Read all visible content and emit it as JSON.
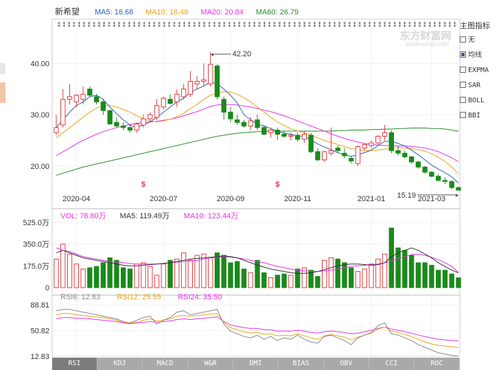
{
  "stock": {
    "name": "新希望"
  },
  "ma_legend": [
    {
      "label": "MA5: 16.68",
      "color": "#2a5db0"
    },
    {
      "label": "MA10: 18.48",
      "color": "#e8a317"
    },
    {
      "label": "MA20: 20.84",
      "color": "#e830e8"
    },
    {
      "label": "MA60: 26.79",
      "color": "#2a8a2a"
    }
  ],
  "price_axis": {
    "ticks": [
      "40.00",
      "30.00",
      "20.00"
    ],
    "range": [
      14.5,
      47.0
    ]
  },
  "date_ticks": [
    {
      "label": "2020-04",
      "idx": 3
    },
    {
      "label": "2020-07",
      "idx": 16
    },
    {
      "label": "2020-09",
      "idx": 26
    },
    {
      "label": "2020-11",
      "idx": 36
    },
    {
      "label": "2021-01",
      "idx": 47
    },
    {
      "label": "2021-03",
      "idx": 56
    }
  ],
  "annotations": {
    "high": "42.20",
    "low": "15.19"
  },
  "watermark": {
    "cn": "东方财富网",
    "en": "eastmoney.com"
  },
  "side_panel": {
    "title": "主图指标",
    "options": [
      {
        "label": "无",
        "checked": false
      },
      {
        "label": "均线",
        "checked": true
      },
      {
        "label": "EXPMA",
        "checked": false
      },
      {
        "label": "SAR",
        "checked": false
      },
      {
        "label": "BOLL",
        "checked": false
      },
      {
        "label": "BBI",
        "checked": false
      }
    ]
  },
  "volume_legend": [
    {
      "label": "VOL: 78.80万",
      "color": "#e830e8"
    },
    {
      "label": "MA5: 119.49万",
      "color": "#333333"
    },
    {
      "label": "MA10: 123.44万",
      "color": "#e830e8"
    }
  ],
  "volume_axis": {
    "ticks": [
      "525.0万",
      "350.0万",
      "175.0万",
      "0"
    ],
    "max": 525
  },
  "rsi_legend": [
    {
      "label": "RSI6: 12.83",
      "color": "#888888"
    },
    {
      "label": "RSI12: 25.55",
      "color": "#e8a317"
    },
    {
      "label": "RSI24: 35.50",
      "color": "#e830e8"
    }
  ],
  "rsi_axis": {
    "ticks": [
      "88.81",
      "50.82",
      "12.83"
    ],
    "range": [
      12.83,
      88.81
    ]
  },
  "indicator_tabs": [
    "RSI",
    "KDJ",
    "MACD",
    "W&R",
    "DMI",
    "BIAS",
    "OBV",
    "CCI",
    "ROC"
  ],
  "chart_data": {
    "type": "candlestick",
    "candles": [
      {
        "o": 26.5,
        "h": 30.0,
        "l": 26.0,
        "c": 27.5
      },
      {
        "o": 28.0,
        "h": 35.0,
        "l": 27.5,
        "c": 33.0
      },
      {
        "o": 33.0,
        "h": 36.0,
        "l": 32.0,
        "c": 33.5
      },
      {
        "o": 32.5,
        "h": 34.0,
        "l": 31.5,
        "c": 33.8
      },
      {
        "o": 33.0,
        "h": 35.5,
        "l": 32.0,
        "c": 34.0
      },
      {
        "o": 35.0,
        "h": 35.5,
        "l": 33.5,
        "c": 33.8
      },
      {
        "o": 33.5,
        "h": 34.0,
        "l": 32.0,
        "c": 32.5
      },
      {
        "o": 32.5,
        "h": 33.0,
        "l": 30.0,
        "c": 30.8
      },
      {
        "o": 30.8,
        "h": 31.0,
        "l": 28.0,
        "c": 28.2
      },
      {
        "o": 28.5,
        "h": 29.5,
        "l": 27.5,
        "c": 27.8
      },
      {
        "o": 27.8,
        "h": 28.5,
        "l": 27.0,
        "c": 27.5
      },
      {
        "o": 27.5,
        "h": 28.0,
        "l": 26.5,
        "c": 27.0
      },
      {
        "o": 27.0,
        "h": 28.5,
        "l": 26.5,
        "c": 28.2
      },
      {
        "o": 28.0,
        "h": 30.0,
        "l": 27.5,
        "c": 29.2
      },
      {
        "o": 29.2,
        "h": 30.5,
        "l": 28.5,
        "c": 30.0
      },
      {
        "o": 29.5,
        "h": 33.0,
        "l": 29.0,
        "c": 31.8
      },
      {
        "o": 31.5,
        "h": 33.5,
        "l": 31.0,
        "c": 33.2
      },
      {
        "o": 33.0,
        "h": 34.0,
        "l": 32.0,
        "c": 32.2
      },
      {
        "o": 32.5,
        "h": 35.0,
        "l": 31.5,
        "c": 34.0
      },
      {
        "o": 33.5,
        "h": 36.0,
        "l": 33.0,
        "c": 35.0
      },
      {
        "o": 34.0,
        "h": 38.5,
        "l": 33.5,
        "c": 36.5
      },
      {
        "o": 36.0,
        "h": 37.5,
        "l": 35.0,
        "c": 36.5
      },
      {
        "o": 36.5,
        "h": 40.0,
        "l": 35.5,
        "c": 36.8
      },
      {
        "o": 36.0,
        "h": 42.2,
        "l": 35.5,
        "c": 39.8
      },
      {
        "o": 39.5,
        "h": 39.8,
        "l": 33.0,
        "c": 33.5
      },
      {
        "o": 33.0,
        "h": 33.5,
        "l": 29.0,
        "c": 30.5
      },
      {
        "o": 30.5,
        "h": 31.5,
        "l": 28.5,
        "c": 29.2
      },
      {
        "o": 29.0,
        "h": 30.0,
        "l": 28.0,
        "c": 28.5
      },
      {
        "o": 28.5,
        "h": 29.0,
        "l": 27.5,
        "c": 27.8
      },
      {
        "o": 27.8,
        "h": 29.5,
        "l": 27.0,
        "c": 28.8
      },
      {
        "o": 29.0,
        "h": 30.0,
        "l": 27.0,
        "c": 27.5
      },
      {
        "o": 27.5,
        "h": 28.0,
        "l": 26.0,
        "c": 26.2
      },
      {
        "o": 26.5,
        "h": 27.5,
        "l": 25.5,
        "c": 27.0
      },
      {
        "o": 27.0,
        "h": 27.5,
        "l": 25.0,
        "c": 26.2
      },
      {
        "o": 26.2,
        "h": 26.8,
        "l": 25.5,
        "c": 25.8
      },
      {
        "o": 25.8,
        "h": 26.5,
        "l": 25.0,
        "c": 26.0
      },
      {
        "o": 26.0,
        "h": 26.5,
        "l": 24.8,
        "c": 25.2
      },
      {
        "o": 25.2,
        "h": 26.8,
        "l": 24.5,
        "c": 26.2
      },
      {
        "o": 26.0,
        "h": 26.5,
        "l": 22.5,
        "c": 22.8
      },
      {
        "o": 22.8,
        "h": 23.5,
        "l": 21.0,
        "c": 21.2
      },
      {
        "o": 21.2,
        "h": 23.0,
        "l": 20.8,
        "c": 22.8
      },
      {
        "o": 22.5,
        "h": 27.5,
        "l": 22.0,
        "c": 23.0
      },
      {
        "o": 23.5,
        "h": 24.0,
        "l": 22.5,
        "c": 23.0
      },
      {
        "o": 22.5,
        "h": 23.5,
        "l": 21.5,
        "c": 22.0
      },
      {
        "o": 21.5,
        "h": 22.0,
        "l": 20.5,
        "c": 21.0
      },
      {
        "o": 20.5,
        "h": 24.0,
        "l": 20.0,
        "c": 23.8
      },
      {
        "o": 23.5,
        "h": 24.5,
        "l": 23.0,
        "c": 24.2
      },
      {
        "o": 24.0,
        "h": 25.0,
        "l": 23.5,
        "c": 24.5
      },
      {
        "o": 24.5,
        "h": 26.0,
        "l": 24.0,
        "c": 25.8
      },
      {
        "o": 25.8,
        "h": 28.0,
        "l": 25.0,
        "c": 26.5
      },
      {
        "o": 26.5,
        "h": 27.0,
        "l": 22.5,
        "c": 23.0
      },
      {
        "o": 23.0,
        "h": 24.0,
        "l": 22.0,
        "c": 22.5
      },
      {
        "o": 22.5,
        "h": 23.0,
        "l": 21.5,
        "c": 21.8
      },
      {
        "o": 21.8,
        "h": 22.0,
        "l": 20.5,
        "c": 20.8
      },
      {
        "o": 20.8,
        "h": 21.0,
        "l": 19.5,
        "c": 19.8
      },
      {
        "o": 19.8,
        "h": 20.0,
        "l": 18.5,
        "c": 18.8
      },
      {
        "o": 18.8,
        "h": 19.0,
        "l": 17.8,
        "c": 18.0
      },
      {
        "o": 18.0,
        "h": 18.5,
        "l": 17.0,
        "c": 17.2
      },
      {
        "o": 17.2,
        "h": 17.8,
        "l": 16.5,
        "c": 17.0
      },
      {
        "o": 17.0,
        "h": 17.2,
        "l": 15.5,
        "c": 15.8
      },
      {
        "o": 15.8,
        "h": 16.0,
        "l": 15.19,
        "c": 15.3
      }
    ],
    "ma5": [
      27.5,
      29.0,
      30.5,
      31.8,
      32.5,
      33.5,
      33.8,
      33.0,
      31.5,
      30.2,
      29.0,
      28.0,
      27.5,
      28.0,
      28.6,
      29.5,
      30.5,
      31.5,
      32.5,
      33.2,
      34.3,
      35.0,
      35.6,
      36.4,
      36.0,
      35.0,
      33.8,
      32.3,
      30.0,
      29.0,
      28.2,
      27.8,
      27.3,
      26.8,
      26.4,
      26.2,
      25.9,
      25.8,
      25.1,
      24.3,
      23.7,
      23.2,
      22.6,
      22.2,
      21.9,
      22.2,
      22.6,
      23.1,
      24.0,
      24.8,
      24.8,
      24.4,
      23.9,
      23.1,
      22.2,
      21.2,
      20.2,
      19.4,
      18.7,
      17.9,
      16.7
    ],
    "ma10": [
      25.5,
      26.5,
      27.5,
      28.5,
      29.5,
      30.5,
      31.3,
      31.8,
      31.8,
      31.5,
      31.0,
      30.5,
      29.8,
      29.2,
      28.8,
      28.6,
      28.8,
      29.1,
      29.6,
      30.3,
      31.2,
      32.0,
      33.0,
      33.8,
      34.2,
      34.5,
      34.4,
      34.0,
      33.3,
      32.5,
      31.5,
      30.5,
      29.5,
      28.6,
      27.9,
      27.3,
      26.8,
      26.5,
      26.0,
      25.5,
      25.0,
      24.6,
      24.2,
      23.8,
      23.4,
      23.2,
      23.0,
      23.0,
      23.1,
      23.3,
      23.5,
      23.6,
      23.5,
      23.4,
      23.2,
      22.9,
      22.4,
      21.7,
      20.9,
      19.8,
      18.48
    ],
    "ma20": [
      22.0,
      22.8,
      23.5,
      24.3,
      25.0,
      25.6,
      26.2,
      26.7,
      27.1,
      27.5,
      27.8,
      28.1,
      28.3,
      28.5,
      28.6,
      28.7,
      28.9,
      29.1,
      29.4,
      29.8,
      30.2,
      30.6,
      31.1,
      31.6,
      31.9,
      32.0,
      32.0,
      31.9,
      31.7,
      31.5,
      31.2,
      30.9,
      30.6,
      30.2,
      29.8,
      29.3,
      28.8,
      28.3,
      27.8,
      27.3,
      26.8,
      26.3,
      25.8,
      25.4,
      25.0,
      24.7,
      24.4,
      24.2,
      24.1,
      24.0,
      24.0,
      23.9,
      23.9,
      23.8,
      23.7,
      23.5,
      23.2,
      22.8,
      22.2,
      21.6,
      20.84
    ],
    "ma60": [
      18.2,
      18.6,
      19.0,
      19.4,
      19.8,
      20.1,
      20.4,
      20.7,
      21.0,
      21.3,
      21.6,
      21.9,
      22.2,
      22.5,
      22.8,
      23.1,
      23.4,
      23.7,
      24.0,
      24.3,
      24.6,
      24.9,
      25.2,
      25.5,
      25.8,
      26.0,
      26.2,
      26.4,
      26.5,
      26.6,
      26.7,
      26.8,
      26.8,
      26.8,
      26.8,
      26.8,
      26.8,
      26.8,
      26.8,
      26.8,
      26.8,
      26.8,
      26.9,
      26.9,
      27.0,
      27.0,
      27.0,
      27.1,
      27.1,
      27.2,
      27.2,
      27.3,
      27.3,
      27.4,
      27.4,
      27.4,
      27.3,
      27.3,
      27.2,
      27.0,
      26.79
    ],
    "volume": [
      230,
      350,
      270,
      190,
      150,
      160,
      170,
      200,
      240,
      220,
      160,
      150,
      190,
      200,
      170,
      100,
      190,
      220,
      230,
      280,
      220,
      260,
      270,
      240,
      280,
      260,
      200,
      210,
      150,
      120,
      220,
      120,
      80,
      100,
      110,
      100,
      150,
      160,
      140,
      90,
      220,
      240,
      230,
      200,
      160,
      130,
      150,
      190,
      230,
      270,
      480,
      320,
      300,
      260,
      200,
      200,
      180,
      140,
      140,
      110,
      78.8
    ],
    "vol_ma5": [
      280,
      300,
      280,
      260,
      240,
      230,
      220,
      210,
      200,
      190,
      180,
      175,
      175,
      180,
      185,
      190,
      195,
      200,
      210,
      220,
      230,
      235,
      240,
      245,
      250,
      255,
      250,
      240,
      220,
      200,
      180,
      165,
      150,
      140,
      130,
      120,
      115,
      115,
      120,
      130,
      145,
      160,
      175,
      185,
      190,
      190,
      185,
      180,
      185,
      200,
      250,
      280,
      300,
      320,
      300,
      270,
      240,
      200,
      170,
      140,
      119.5
    ],
    "vol_ma10": [
      320,
      300,
      290,
      270,
      250,
      240,
      230,
      220,
      210,
      205,
      200,
      195,
      190,
      190,
      190,
      190,
      195,
      200,
      205,
      210,
      215,
      220,
      230,
      240,
      245,
      250,
      245,
      240,
      230,
      220,
      210,
      200,
      185,
      170,
      160,
      150,
      140,
      135,
      130,
      130,
      135,
      140,
      150,
      160,
      170,
      175,
      180,
      185,
      190,
      200,
      215,
      235,
      250,
      265,
      270,
      260,
      245,
      225,
      200,
      170,
      123.4
    ],
    "rsi6": [
      80,
      82,
      82,
      80,
      78,
      76,
      74,
      72,
      70,
      68,
      64,
      62,
      66,
      70,
      72,
      60,
      66,
      70,
      78,
      80,
      74,
      76,
      78,
      80,
      82,
      60,
      50,
      46,
      42,
      40,
      44,
      38,
      42,
      36,
      40,
      38,
      44,
      38,
      34,
      32,
      42,
      44,
      40,
      36,
      30,
      40,
      44,
      48,
      58,
      62,
      46,
      44,
      40,
      36,
      30,
      26,
      22,
      18,
      16,
      14,
      12.8
    ],
    "rsi12": [
      74,
      76,
      76,
      74,
      73,
      72,
      71,
      70,
      68,
      66,
      63,
      62,
      63,
      66,
      68,
      65,
      66,
      68,
      72,
      73,
      72,
      73,
      74,
      75,
      76,
      63,
      55,
      52,
      49,
      47,
      48,
      45,
      46,
      43,
      44,
      43,
      46,
      43,
      40,
      38,
      43,
      45,
      43,
      41,
      37,
      41,
      44,
      47,
      53,
      56,
      50,
      48,
      45,
      42,
      38,
      34,
      31,
      29,
      28,
      27,
      25.6
    ],
    "rsi24": [
      68,
      70,
      70,
      69,
      69,
      68,
      67,
      66,
      65,
      64,
      62,
      61,
      62,
      63,
      64,
      63,
      64,
      65,
      67,
      68,
      67,
      68,
      69,
      70,
      71,
      64,
      59,
      57,
      55,
      54,
      54,
      52,
      52,
      50,
      50,
      50,
      51,
      50,
      48,
      47,
      49,
      50,
      49,
      48,
      46,
      47,
      49,
      51,
      54,
      56,
      53,
      51,
      49,
      47,
      44,
      42,
      40,
      38,
      37,
      36,
      35.5
    ]
  }
}
